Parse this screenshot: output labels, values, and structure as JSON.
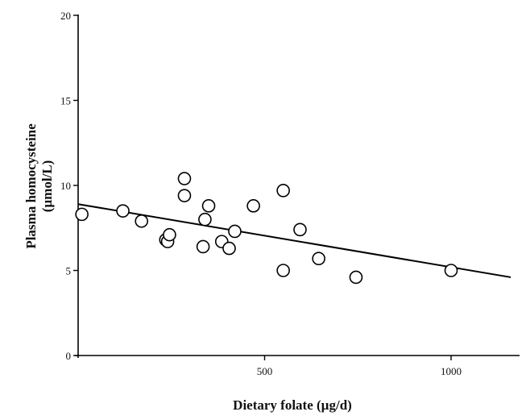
{
  "chart_data": {
    "type": "scatter",
    "title": "",
    "xlabel": "Dietary folate (µg/d)",
    "ylabel_line1": "Plasma homocysteine",
    "ylabel_line2": "(µmol/L)",
    "xlim": [
      0,
      1200
    ],
    "ylim": [
      0,
      20
    ],
    "x_ticks": [
      500,
      1000
    ],
    "x_tick_labels": [
      "500",
      "1000"
    ],
    "y_ticks": [
      0,
      5,
      10,
      15,
      20
    ],
    "y_tick_labels": [
      "0",
      "5",
      "10",
      "15",
      "20"
    ],
    "grid": false,
    "legend": "none",
    "series": [
      {
        "points": [
          {
            "x": 10,
            "y": 8.3
          },
          {
            "x": 120,
            "y": 8.5
          },
          {
            "x": 170,
            "y": 7.9
          },
          {
            "x": 235,
            "y": 6.8
          },
          {
            "x": 240,
            "y": 6.7
          },
          {
            "x": 245,
            "y": 7.1
          },
          {
            "x": 285,
            "y": 10.4
          },
          {
            "x": 285,
            "y": 9.4
          },
          {
            "x": 335,
            "y": 6.4
          },
          {
            "x": 340,
            "y": 8.0
          },
          {
            "x": 350,
            "y": 8.8
          },
          {
            "x": 385,
            "y": 6.7
          },
          {
            "x": 405,
            "y": 6.3
          },
          {
            "x": 420,
            "y": 7.3
          },
          {
            "x": 470,
            "y": 8.8
          },
          {
            "x": 550,
            "y": 9.7
          },
          {
            "x": 550,
            "y": 5.0
          },
          {
            "x": 595,
            "y": 7.4
          },
          {
            "x": 645,
            "y": 5.7
          },
          {
            "x": 745,
            "y": 4.6
          },
          {
            "x": 1000,
            "y": 5.0
          }
        ]
      }
    ],
    "trend_line": {
      "type": "linear",
      "points": [
        {
          "x": 0,
          "y": 8.9
        },
        {
          "x": 1160,
          "y": 4.6
        }
      ]
    }
  }
}
